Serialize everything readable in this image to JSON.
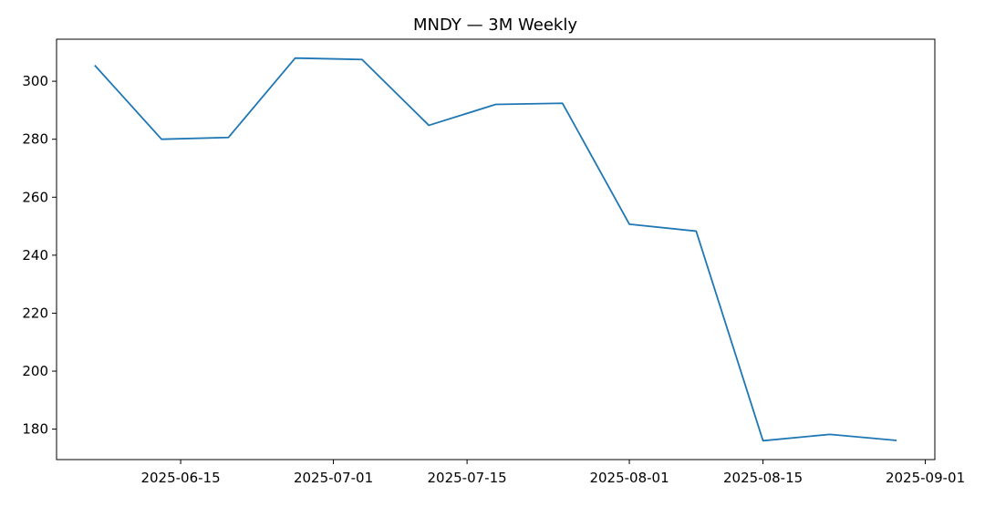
{
  "chart_data": {
    "type": "line",
    "title": "MNDY — 3M Weekly",
    "xlabel": "",
    "ylabel": "",
    "x_axis_type": "date",
    "x": [
      "2025-06-06",
      "2025-06-13",
      "2025-06-20",
      "2025-06-27",
      "2025-07-04",
      "2025-07-11",
      "2025-07-18",
      "2025-07-25",
      "2025-08-01",
      "2025-08-08",
      "2025-08-15",
      "2025-08-22",
      "2025-08-29"
    ],
    "series": [
      {
        "color": "#1f77b4",
        "values": [
          305.5,
          280.0,
          280.6,
          308.0,
          307.5,
          284.8,
          292.0,
          292.4,
          250.7,
          248.3,
          176.0,
          178.2,
          176.1
        ]
      }
    ],
    "xlim": [
      "2025-06-02",
      "2025-09-02"
    ],
    "ylim": [
      169.5,
      314.5
    ],
    "x_ticks": [
      "2025-06-15",
      "2025-07-01",
      "2025-07-15",
      "2025-08-01",
      "2025-08-15",
      "2025-09-01"
    ],
    "y_ticks": [
      180,
      200,
      220,
      240,
      260,
      280,
      300
    ],
    "grid": false,
    "legend": "none"
  }
}
